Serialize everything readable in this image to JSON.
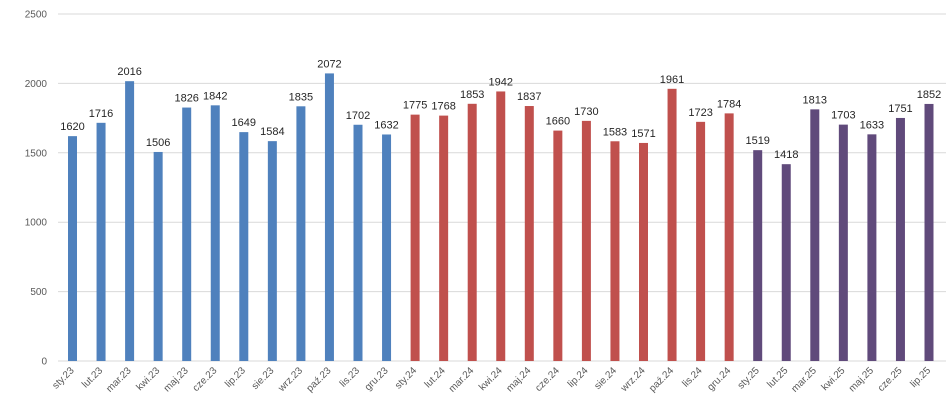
{
  "chart_data": {
    "type": "bar",
    "title": "",
    "xlabel": "",
    "ylabel": "",
    "ylim": [
      0,
      2500
    ],
    "yticks": [
      0,
      500,
      1000,
      1500,
      2000,
      2500
    ],
    "grid": true,
    "legend": "none",
    "data_labels": true,
    "colors": {
      "2023": "#4f81bd",
      "2024": "#c0504d",
      "2025": "#604a7b"
    },
    "categories": [
      "sty.23",
      "lut.23",
      "mar.23",
      "kwi.23",
      "maj.23",
      "cze.23",
      "lip.23",
      "sie.23",
      "wrz.23",
      "paź.23",
      "lis.23",
      "gru.23",
      "sty.24",
      "lut.24",
      "mar.24",
      "kwi.24",
      "maj.24",
      "cze.24",
      "lip.24",
      "sie.24",
      "wrz.24",
      "paź.24",
      "lis.24",
      "gru.24",
      "sty.25",
      "lut.25",
      "mar.25",
      "kwi.25",
      "maj.25",
      "cze.25",
      "lip.25"
    ],
    "values": [
      1620,
      1716,
      2016,
      1506,
      1826,
      1842,
      1649,
      1584,
      1835,
      2072,
      1702,
      1632,
      1775,
      1768,
      1853,
      1942,
      1837,
      1660,
      1730,
      1583,
      1571,
      1961,
      1723,
      1784,
      1519,
      1418,
      1813,
      1703,
      1633,
      1751,
      1852
    ]
  }
}
